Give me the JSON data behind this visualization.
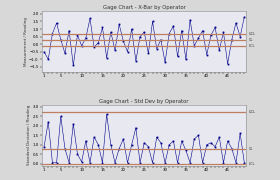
{
  "title1": "Gage Chart - X-Bar by Operator",
  "title2": "Gage Chart - Std Dev by Operator",
  "ylabel1": "Measurement / Reading",
  "ylabel2": "Standard Deviation / Reading",
  "bg_color": "#d8d8d8",
  "plot_bg": "#e8e8f0",
  "line_color": "#00008B",
  "marker_color": "#00008B",
  "ref_line_color": "#bc8060",
  "xbar_data": [
    -0.5,
    -1.0,
    0.7,
    1.4,
    0.3,
    -0.6,
    0.9,
    -1.4,
    0.6,
    -0.1,
    0.4,
    1.7,
    -0.2,
    0.1,
    1.1,
    -0.9,
    0.8,
    -0.4,
    1.3,
    0.2,
    -0.5,
    1.0,
    -1.1,
    0.5,
    0.8,
    -0.6,
    1.5,
    -0.3,
    0.3,
    -1.2,
    0.7,
    1.2,
    -0.8,
    0.9,
    -1.0,
    1.6,
    -0.1,
    0.4,
    0.9,
    -0.7,
    0.6,
    1.1,
    -0.4,
    0.8,
    -1.3,
    0.3,
    1.4,
    0.5,
    1.8
  ],
  "xbar_ucl": 0.7,
  "xbar_mean": 0.3,
  "xbar_lcl": -0.1,
  "xbar_ylim": [
    -1.8,
    2.2
  ],
  "xbar_yticks": [
    -1.5,
    -1.0,
    -0.5,
    0.0,
    0.5,
    1.0,
    1.5,
    2.0
  ],
  "ucl_label": "UCL",
  "cl_label": "CL",
  "lcl_label": "LCL",
  "std_data": [
    0.9,
    2.2,
    0.05,
    0.05,
    2.5,
    0.8,
    0.05,
    2.1,
    0.5,
    0.1,
    1.2,
    0.05,
    1.4,
    1.0,
    0.05,
    2.6,
    1.0,
    0.05,
    0.8,
    1.3,
    0.05,
    1.0,
    1.9,
    0.05,
    1.1,
    0.9,
    0.05,
    1.4,
    1.1,
    0.05,
    1.0,
    1.2,
    0.05,
    1.2,
    0.7,
    0.05,
    1.3,
    1.5,
    0.05,
    1.0,
    1.1,
    0.9,
    1.4,
    0.05,
    1.2,
    0.8,
    0.05,
    1.6,
    0.05
  ],
  "std_ucl": 2.75,
  "std_mean": 0.8,
  "std_lcl": 0.0,
  "std_ylim": [
    -0.1,
    3.1
  ],
  "std_yticks": [
    0.0,
    0.5,
    1.0,
    1.5,
    2.0,
    2.5,
    3.0
  ],
  "n_points": 49,
  "title_fontsize": 3.8,
  "tick_fontsize": 2.8,
  "label_fontsize": 3.0,
  "annot_fontsize": 2.5
}
